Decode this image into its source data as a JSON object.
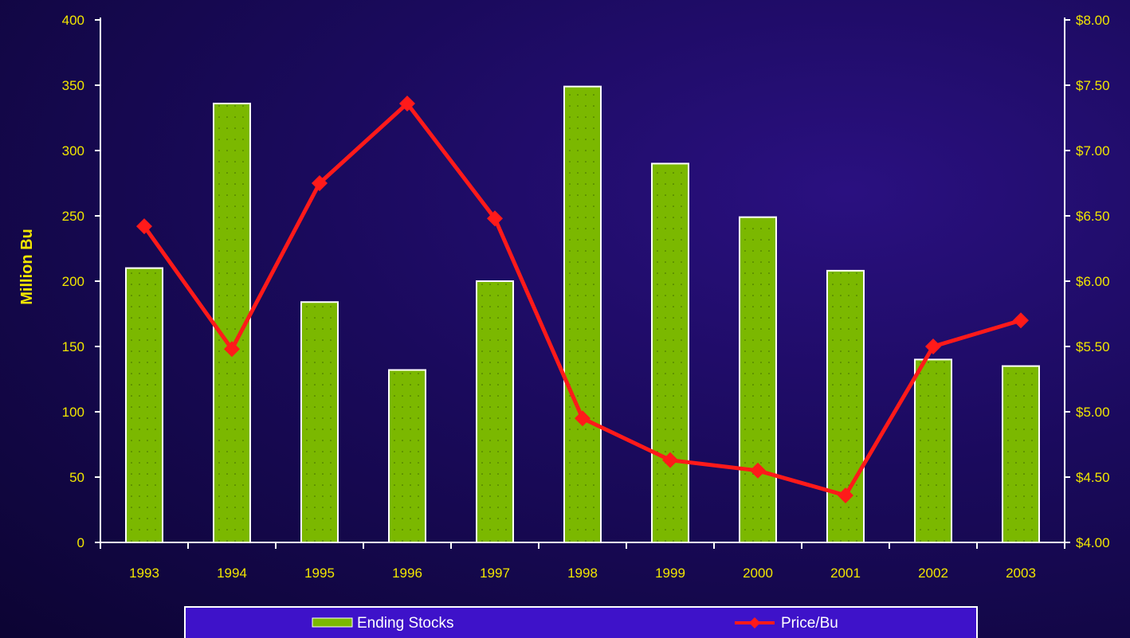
{
  "chart_data": {
    "type": "bar",
    "categories": [
      "1993",
      "1994",
      "1995",
      "1996",
      "1997",
      "1998",
      "1999",
      "2000",
      "2001",
      "2002",
      "2003"
    ],
    "series": [
      {
        "name": "Ending Stocks",
        "type": "bar",
        "axis": "left",
        "color": "#7bb800",
        "values": [
          210,
          336,
          184,
          132,
          200,
          349,
          290,
          249,
          208,
          140,
          135
        ]
      },
      {
        "name": "Price/Bu",
        "type": "line",
        "axis": "right",
        "color": "#ff1a1a",
        "values": [
          6.42,
          5.48,
          6.75,
          7.36,
          6.48,
          4.95,
          4.63,
          4.55,
          4.36,
          5.5,
          5.7
        ]
      }
    ],
    "ylabel": "Million Bu",
    "ylim": [
      0,
      400
    ],
    "y_ticks": [
      "0",
      "50",
      "100",
      "150",
      "200",
      "250",
      "300",
      "350",
      "400"
    ],
    "y2lim": [
      4.0,
      8.0
    ],
    "y2_ticks": [
      "$4.00",
      "$4.50",
      "$5.00",
      "$5.50",
      "$6.00",
      "$6.50",
      "$7.00",
      "$7.50",
      "$8.00"
    ],
    "legend_position": "bottom",
    "grid": false
  }
}
